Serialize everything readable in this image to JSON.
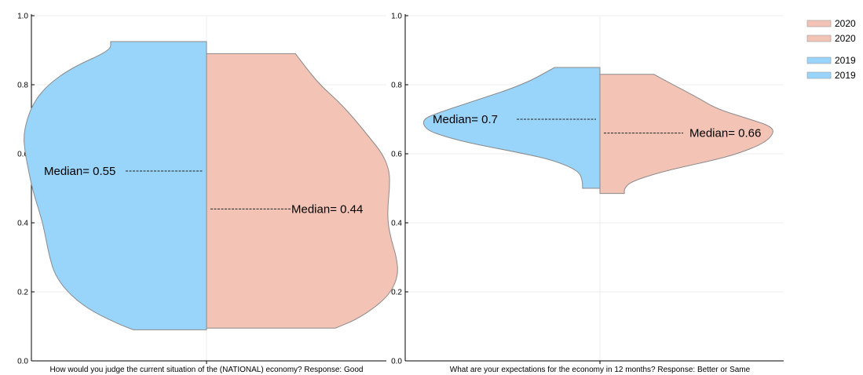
{
  "chart_data": [
    {
      "type": "violin",
      "xlabel": "How would you judge the current situation of the (NATIONAL) economy? Response: Good",
      "ylim": [
        0,
        1
      ],
      "yticks": [
        "0.0",
        "0.2",
        "0.4",
        "0.6",
        "0.8",
        "1.0"
      ],
      "grid": true,
      "series": [
        {
          "name": "2019",
          "side": "left",
          "color": "#99d5fb",
          "median": 0.55,
          "median_label": "Median= 0.55",
          "range": [
            0.09,
            0.925
          ],
          "density": [
            [
              0.09,
              0.42
            ],
            [
              0.11,
              0.52
            ],
            [
              0.15,
              0.68
            ],
            [
              0.2,
              0.8
            ],
            [
              0.25,
              0.87
            ],
            [
              0.3,
              0.9
            ],
            [
              0.35,
              0.92
            ],
            [
              0.4,
              0.94
            ],
            [
              0.45,
              0.97
            ],
            [
              0.5,
              1.0
            ],
            [
              0.55,
              1.02
            ],
            [
              0.6,
              1.04
            ],
            [
              0.65,
              1.05
            ],
            [
              0.7,
              1.03
            ],
            [
              0.75,
              0.99
            ],
            [
              0.8,
              0.91
            ],
            [
              0.85,
              0.77
            ],
            [
              0.9,
              0.55
            ],
            [
              0.925,
              0.55
            ]
          ]
        },
        {
          "name": "2020",
          "side": "right",
          "color": "#f3c4b6",
          "median": 0.44,
          "median_label": "Median= 0.44",
          "range": [
            0.095,
            0.89
          ],
          "density": [
            [
              0.095,
              0.74
            ],
            [
              0.12,
              0.86
            ],
            [
              0.16,
              0.98
            ],
            [
              0.2,
              1.06
            ],
            [
              0.25,
              1.1
            ],
            [
              0.3,
              1.09
            ],
            [
              0.35,
              1.06
            ],
            [
              0.4,
              1.04
            ],
            [
              0.45,
              1.04
            ],
            [
              0.5,
              1.05
            ],
            [
              0.55,
              1.05
            ],
            [
              0.6,
              1.01
            ],
            [
              0.65,
              0.93
            ],
            [
              0.7,
              0.85
            ],
            [
              0.75,
              0.76
            ],
            [
              0.8,
              0.65
            ],
            [
              0.85,
              0.57
            ],
            [
              0.89,
              0.51
            ]
          ]
        }
      ]
    },
    {
      "type": "violin",
      "xlabel": "What are your expectations for the economy in 12 months? Response: Better or Same",
      "ylim": [
        0,
        1
      ],
      "yticks": [
        "0.0",
        "0.2",
        "0.4",
        "0.6",
        "0.8",
        "1.0"
      ],
      "grid": true,
      "series": [
        {
          "name": "2019",
          "side": "left",
          "color": "#99d5fb",
          "median": 0.7,
          "median_label": "Median= 0.7",
          "range": [
            0.5,
            0.85
          ],
          "density": [
            [
              0.5,
              0.1
            ],
            [
              0.52,
              0.1
            ],
            [
              0.55,
              0.12
            ],
            [
              0.58,
              0.26
            ],
            [
              0.6,
              0.43
            ],
            [
              0.63,
              0.74
            ],
            [
              0.65,
              0.89
            ],
            [
              0.67,
              1.0
            ],
            [
              0.7,
              1.02
            ],
            [
              0.72,
              0.92
            ],
            [
              0.75,
              0.74
            ],
            [
              0.8,
              0.44
            ],
            [
              0.85,
              0.26
            ]
          ]
        },
        {
          "name": "2020",
          "side": "right",
          "color": "#f3c4b6",
          "median": 0.66,
          "median_label": "Median= 0.66",
          "range": [
            0.485,
            0.83
          ],
          "density": [
            [
              0.485,
              0.14
            ],
            [
              0.5,
              0.14
            ],
            [
              0.52,
              0.18
            ],
            [
              0.55,
              0.37
            ],
            [
              0.58,
              0.64
            ],
            [
              0.6,
              0.79
            ],
            [
              0.63,
              0.94
            ],
            [
              0.66,
              1.0
            ],
            [
              0.68,
              0.98
            ],
            [
              0.7,
              0.86
            ],
            [
              0.73,
              0.67
            ],
            [
              0.76,
              0.57
            ],
            [
              0.8,
              0.42
            ],
            [
              0.83,
              0.31
            ]
          ]
        }
      ]
    }
  ],
  "legend": {
    "placement": "top-right",
    "items": [
      {
        "label": "2020",
        "color": "#f3c4b6"
      },
      {
        "label": "2020",
        "color": "#f3c4b6"
      },
      {
        "label": "2019",
        "color": "#99d5fb"
      },
      {
        "label": "2019",
        "color": "#99d5fb"
      }
    ]
  }
}
